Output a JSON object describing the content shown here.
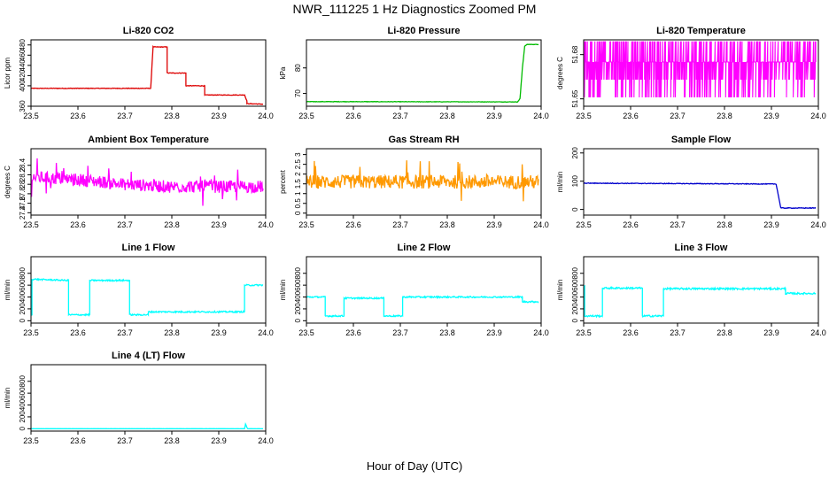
{
  "figure": {
    "title": "NWR_111225  1 Hz Diagnostics Zoomed PM",
    "xlabel": "Hour of Day (UTC)"
  },
  "chart_data": [
    {
      "type": "line",
      "title": "Li-820 CO2",
      "ylabel": "Licor ppm",
      "color": "#dd0000",
      "xlim": [
        23.5,
        24.0
      ],
      "xticks": [
        "23.5",
        "23.6",
        "23.7",
        "23.8",
        "23.9",
        "24.0"
      ],
      "ylim": [
        360,
        490
      ],
      "yticks": [
        360,
        400,
        420,
        440,
        460,
        480
      ],
      "noise": 0.6,
      "series": [
        {
          "x": [
            23.5,
            23.755,
            23.755,
            23.76,
            23.76,
            23.79,
            23.79,
            23.83,
            23.83,
            23.87,
            23.87,
            23.955,
            23.955,
            23.96,
            23.96,
            23.995
          ],
          "y": [
            395,
            395,
            395,
            476,
            476,
            476,
            425,
            425,
            400,
            400,
            382,
            382,
            382,
            370,
            365,
            364
          ]
        }
      ]
    },
    {
      "type": "line",
      "title": "Li-820 Pressure",
      "ylabel": "kPa",
      "color": "#00bb00",
      "xlim": [
        23.5,
        24.0
      ],
      "xticks": [
        "23.5",
        "23.6",
        "23.7",
        "23.8",
        "23.9",
        "24.0"
      ],
      "ylim": [
        65,
        91
      ],
      "yticks": [
        70,
        80
      ],
      "noise": 0.08,
      "series": [
        {
          "x": [
            23.5,
            23.95,
            23.955,
            23.96,
            23.965,
            23.97,
            23.995
          ],
          "y": [
            66.8,
            66.7,
            68,
            80,
            88.5,
            89.2,
            89.2
          ]
        }
      ]
    },
    {
      "type": "line",
      "title": "Li-820 Temperature",
      "ylabel": "degrees C",
      "color": "#ff00ff",
      "xlim": [
        23.5,
        24.0
      ],
      "xticks": [
        "23.5",
        "23.6",
        "23.7",
        "23.8",
        "23.9",
        "24.0"
      ],
      "ylim": [
        51.645,
        51.69
      ],
      "yticks": [
        51.65,
        51.68
      ],
      "pattern": "digital",
      "levels": [
        51.651,
        51.663,
        51.675,
        51.689
      ],
      "series": [
        {
          "x": [
            23.5,
            23.995
          ],
          "y": [
            51.67,
            51.67
          ]
        }
      ]
    },
    {
      "type": "line",
      "title": "Ambient Box Temperature",
      "ylabel": "degrees C",
      "color": "#ff00ff",
      "xlim": [
        23.5,
        24.0
      ],
      "xticks": [
        "23.5",
        "23.6",
        "23.7",
        "23.8",
        "23.9",
        "24.0"
      ],
      "ylim": [
        27.35,
        28.75
      ],
      "yticks": [
        27.4,
        27.6,
        27.8,
        28.0,
        28.2,
        28.4
      ],
      "noise": 0.13,
      "spikes": true,
      "series": [
        {
          "x": [
            23.5,
            23.6,
            23.7,
            23.8,
            23.995
          ],
          "y": [
            28.15,
            28.1,
            28.0,
            27.95,
            27.95
          ]
        }
      ]
    },
    {
      "type": "line",
      "title": "Gas Stream RH",
      "ylabel": "percent",
      "color": "#ff9900",
      "xlim": [
        23.5,
        24.0
      ],
      "xticks": [
        "23.5",
        "23.6",
        "23.7",
        "23.8",
        "23.9",
        "24.0"
      ],
      "ylim": [
        -0.1,
        3.3
      ],
      "yticks": [
        0.0,
        0.5,
        1.0,
        1.5,
        2.0,
        2.5,
        3.0
      ],
      "noise": 0.35,
      "spikes": true,
      "series": [
        {
          "x": [
            23.5,
            23.995
          ],
          "y": [
            1.6,
            1.6
          ]
        }
      ]
    },
    {
      "type": "line",
      "title": "Sample Flow",
      "ylabel": "ml/min",
      "color": "#0000cc",
      "xlim": [
        23.5,
        24.0
      ],
      "xticks": [
        "23.5",
        "23.6",
        "23.7",
        "23.8",
        "23.9",
        "24.0"
      ],
      "ylim": [
        -20,
        215
      ],
      "yticks": [
        0,
        100,
        200
      ],
      "noise": 1.2,
      "series": [
        {
          "x": [
            23.5,
            23.91,
            23.91,
            23.92,
            23.92,
            23.995
          ],
          "y": [
            93,
            90,
            90,
            5,
            5,
            5
          ]
        }
      ]
    },
    {
      "type": "line",
      "title": "Line 1 Flow",
      "ylabel": "ml/min",
      "color": "#00ffff",
      "xlim": [
        23.5,
        24.0
      ],
      "xticks": [
        "23.5",
        "23.6",
        "23.7",
        "23.8",
        "23.9",
        "24.0"
      ],
      "ylim": [
        -40,
        1080
      ],
      "yticks": [
        0,
        200,
        400,
        600,
        800
      ],
      "noise": 12,
      "series": [
        {
          "x": [
            23.5,
            23.502,
            23.502,
            23.58,
            23.58,
            23.625,
            23.625,
            23.71,
            23.71,
            23.75,
            23.75,
            23.955,
            23.955,
            23.995
          ],
          "y": [
            100,
            100,
            700,
            680,
            100,
            100,
            680,
            680,
            100,
            100,
            150,
            150,
            600,
            600
          ]
        }
      ]
    },
    {
      "type": "line",
      "title": "Line 2 Flow",
      "ylabel": "ml/min",
      "color": "#00ffff",
      "xlim": [
        23.5,
        24.0
      ],
      "xticks": [
        "23.5",
        "23.6",
        "23.7",
        "23.8",
        "23.9",
        "24.0"
      ],
      "ylim": [
        -40,
        1080
      ],
      "yticks": [
        0,
        200,
        400,
        600,
        800
      ],
      "noise": 12,
      "series": [
        {
          "x": [
            23.5,
            23.54,
            23.54,
            23.58,
            23.58,
            23.665,
            23.665,
            23.705,
            23.705,
            23.96,
            23.96,
            23.995
          ],
          "y": [
            400,
            400,
            80,
            80,
            380,
            380,
            80,
            80,
            400,
            400,
            320,
            320
          ]
        }
      ]
    },
    {
      "type": "line",
      "title": "Line 3 Flow",
      "ylabel": "ml/min",
      "color": "#00ffff",
      "xlim": [
        23.5,
        24.0
      ],
      "xticks": [
        "23.5",
        "23.6",
        "23.7",
        "23.8",
        "23.9",
        "24.0"
      ],
      "ylim": [
        -40,
        1080
      ],
      "yticks": [
        0,
        200,
        400,
        600,
        800
      ],
      "noise": 15,
      "series": [
        {
          "x": [
            23.5,
            23.502,
            23.502,
            23.54,
            23.54,
            23.625,
            23.625,
            23.67,
            23.67,
            23.93,
            23.93,
            23.995
          ],
          "y": [
            580,
            580,
            80,
            80,
            550,
            550,
            80,
            80,
            540,
            540,
            460,
            460
          ]
        }
      ]
    },
    {
      "type": "line",
      "title": "Line 4 (LT) Flow",
      "ylabel": "ml/min",
      "color": "#00ffff",
      "xlim": [
        23.5,
        24.0
      ],
      "xticks": [
        "23.5",
        "23.6",
        "23.7",
        "23.8",
        "23.9",
        "24.0"
      ],
      "ylim": [
        -40,
        1080
      ],
      "yticks": [
        0,
        200,
        400,
        600,
        800
      ],
      "noise": 1,
      "series": [
        {
          "x": [
            23.5,
            23.955,
            23.957,
            23.96,
            23.962,
            23.995
          ],
          "y": [
            0,
            0,
            80,
            20,
            0,
            0
          ]
        }
      ]
    }
  ]
}
